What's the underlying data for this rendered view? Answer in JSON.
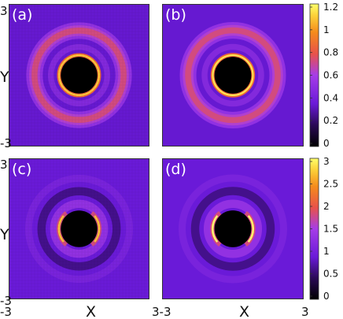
{
  "chart_data": [
    {
      "type": "heatmap",
      "panel": "(a)",
      "xlim": [
        -3,
        3
      ],
      "ylim": [
        -3,
        3
      ],
      "ylabel": "Y",
      "features": {
        "core_radius": 0.78,
        "core": "black",
        "inner_ring_r": 0.85,
        "inner_ring_peak": 1.1,
        "outer_ring_r": 1.9,
        "outer_ring_peak": 0.72,
        "background": 0.35,
        "pixelated": true
      }
    },
    {
      "type": "heatmap",
      "panel": "(b)",
      "xlim": [
        -3,
        3
      ],
      "ylim": [
        -3,
        3
      ],
      "features": {
        "core_radius": 0.78,
        "core": "black",
        "inner_ring_r": 0.85,
        "inner_ring_peak": 1.15,
        "outer_ring_r": 1.9,
        "outer_ring_peak": 0.72,
        "background": 0.35,
        "pixelated": false
      }
    },
    {
      "type": "heatmap",
      "panel": "(c)",
      "xlim": [
        -3,
        3
      ],
      "ylim": [
        -3,
        3
      ],
      "xlabel": "X",
      "ylabel": "Y",
      "features": {
        "core_radius": 0.78,
        "core": "black",
        "inner_ring_r": 0.86,
        "inner_ring_peak": 2.7,
        "outer_ring_r": 1.6,
        "background": 0.9,
        "pixelated": true
      }
    },
    {
      "type": "heatmap",
      "panel": "(d)",
      "xlim": [
        -3,
        3
      ],
      "ylim": [
        -3,
        3
      ],
      "xlabel": "X",
      "features": {
        "core_radius": 0.78,
        "core": "black",
        "inner_ring_r": 0.86,
        "inner_ring_peak": 3.0,
        "outer_ring_r": 1.6,
        "background": 0.9,
        "pixelated": false
      }
    }
  ],
  "colorbars": [
    {
      "ticks": [
        "1.2",
        "1",
        "0.8",
        "0.6",
        "0.4",
        "0.2",
        "0"
      ],
      "range": [
        0,
        1.2
      ]
    },
    {
      "ticks": [
        "3",
        "2.5",
        "2",
        "1.5",
        "1",
        "0.5",
        "0"
      ],
      "range": [
        0,
        3
      ]
    }
  ],
  "axis_text": {
    "y_top": "3",
    "y_bottom": "-3",
    "x_left": "-3",
    "x_right": "3",
    "x_mid_left": "3-3"
  }
}
